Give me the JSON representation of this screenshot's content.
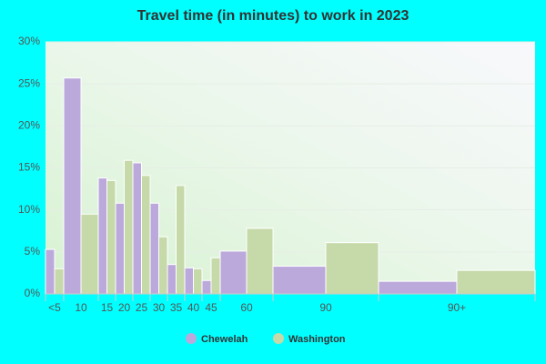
{
  "chart_data": {
    "type": "bar",
    "title": "Travel time (in minutes) to work in 2023",
    "categories": [
      "<5",
      "10",
      "15",
      "20",
      "25",
      "30",
      "35",
      "40",
      "45",
      "60",
      "90",
      "90+"
    ],
    "series": [
      {
        "name": "Chewelah",
        "color": "#bca9dc",
        "values": [
          5.3,
          25.7,
          13.8,
          10.8,
          15.6,
          10.8,
          3.5,
          3.1,
          1.6,
          5.1,
          3.3,
          1.5
        ]
      },
      {
        "name": "Washington",
        "color": "#c6d9a8",
        "values": [
          3.0,
          9.5,
          13.5,
          15.9,
          14.1,
          6.8,
          12.9,
          3.0,
          4.3,
          7.8,
          6.1,
          2.8
        ]
      }
    ],
    "ylim": [
      0,
      30
    ],
    "yticks": [
      {
        "value": 0,
        "label": "0%"
      },
      {
        "value": 5,
        "label": "5%"
      },
      {
        "value": 10,
        "label": "10%"
      },
      {
        "value": 15,
        "label": "15%"
      },
      {
        "value": 20,
        "label": "20%"
      },
      {
        "value": 25,
        "label": "25%"
      },
      {
        "value": 30,
        "label": "30%"
      }
    ],
    "grid": true
  }
}
